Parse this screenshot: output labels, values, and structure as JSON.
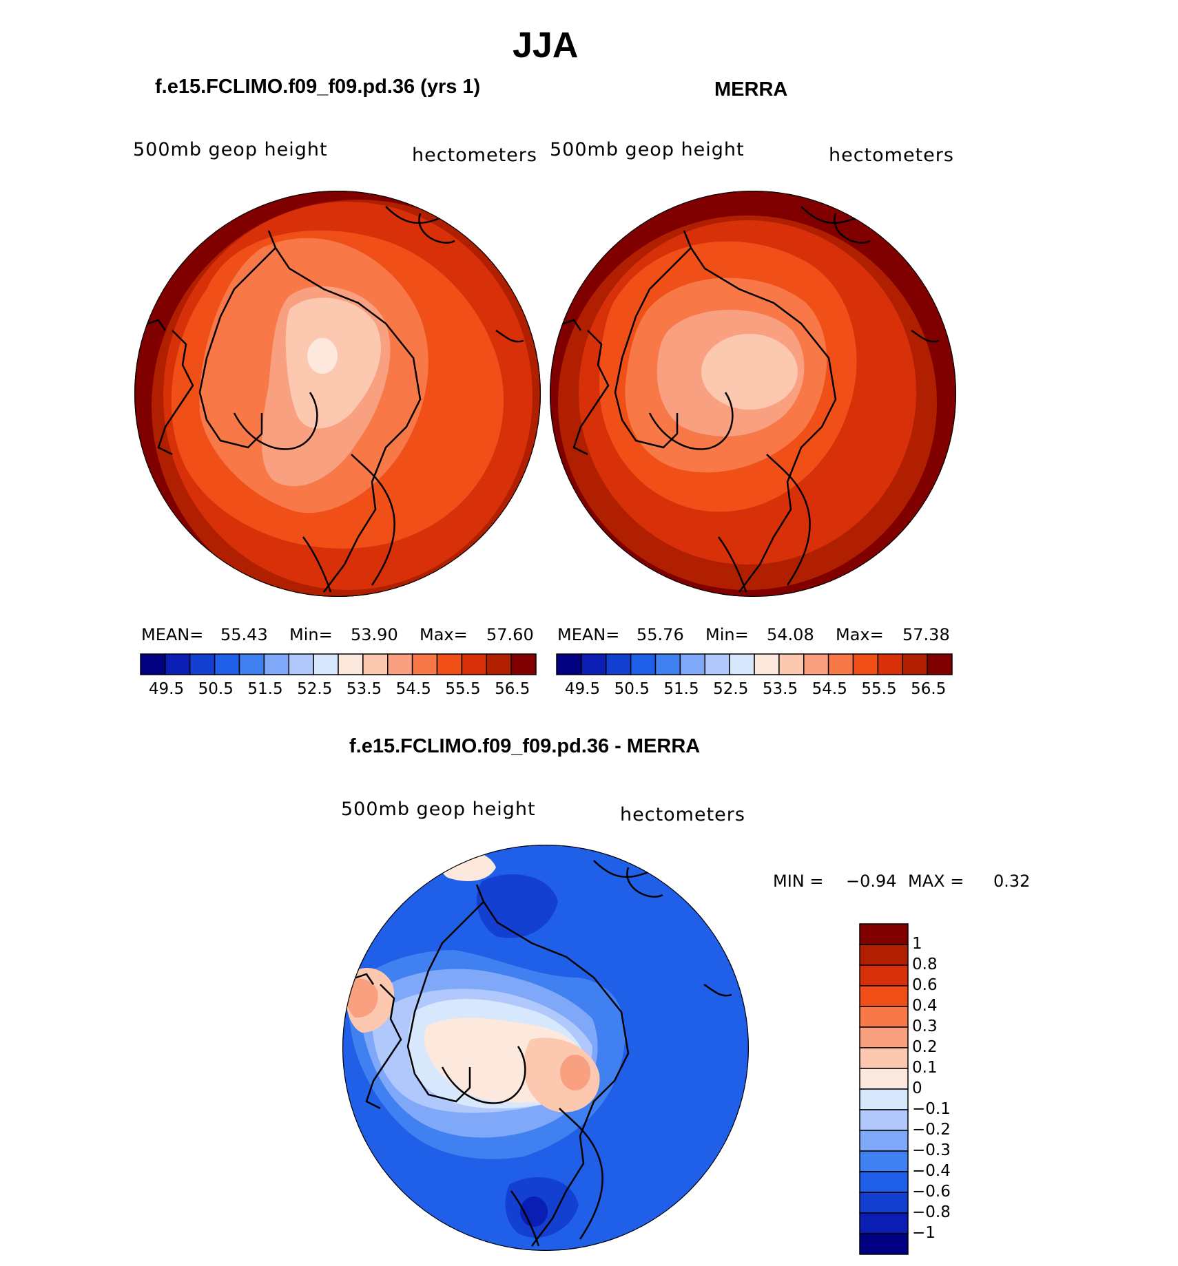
{
  "figure": {
    "title": "JJA",
    "panel_left_title": "f.e15.FCLIMO.f09_f09.pd.36 (yrs 1)",
    "panel_right_title": "MERRA",
    "panel_diff_title": "f.e15.FCLIMO.f09_f09.pd.36 - MERRA"
  },
  "colors": {
    "abs_scale": [
      "#000080",
      "#0a1eb4",
      "#1440d2",
      "#2060e8",
      "#4080f0",
      "#80a8f8",
      "#b0c8fc",
      "#d8e8fc",
      "#fce8dc",
      "#fcc8b0",
      "#f8a080",
      "#f87848",
      "#f05018",
      "#d83008",
      "#b02000",
      "#800000"
    ],
    "diff_scale": [
      "#000080",
      "#0a1eb4",
      "#1440d2",
      "#2060e8",
      "#4080f0",
      "#80a8f8",
      "#b0c8fc",
      "#d8e8fc",
      "#fce8dc",
      "#fcc8b0",
      "#f8a080",
      "#f87848",
      "#f05018",
      "#d83008",
      "#b02000",
      "#800000"
    ]
  },
  "chart_data": [
    {
      "type": "heatmap",
      "title": "f.e15.FCLIMO.f09_f09.pd.36 (yrs 1)",
      "variable_label": "500mb  geop  height",
      "units": "hectometers",
      "stats": {
        "mean_label": "MEAN=",
        "mean": "55.43",
        "min_label": "Min=",
        "min": "53.90",
        "max_label": "Max=",
        "max": "57.60"
      },
      "colorbar_ticks": [
        "49.5",
        "50.5",
        "51.5",
        "52.5",
        "53.5",
        "54.5",
        "55.5",
        "56.5"
      ]
    },
    {
      "type": "heatmap",
      "title": "MERRA",
      "variable_label": "500mb  geop  height",
      "units": "hectometers",
      "stats": {
        "mean_label": "MEAN=",
        "mean": "55.76",
        "min_label": "Min=",
        "min": "54.08",
        "max_label": "Max=",
        "max": "57.38"
      },
      "colorbar_ticks": [
        "49.5",
        "50.5",
        "51.5",
        "52.5",
        "53.5",
        "54.5",
        "55.5",
        "56.5"
      ]
    },
    {
      "type": "heatmap",
      "title": "f.e15.FCLIMO.f09_f09.pd.36 - MERRA",
      "variable_label": "500mb  geop  height",
      "units": "hectometers",
      "stats": {
        "min_label": "MIN =",
        "min": "−0.94",
        "max_label": "MAX =",
        "max": "0.32"
      },
      "colorbar_ticks": [
        "1",
        "0.8",
        "0.6",
        "0.4",
        "0.3",
        "0.2",
        "0.1",
        "0",
        "−0.1",
        "−0.2",
        "−0.3",
        "−0.4",
        "−0.6",
        "−0.8",
        "−1"
      ]
    }
  ]
}
